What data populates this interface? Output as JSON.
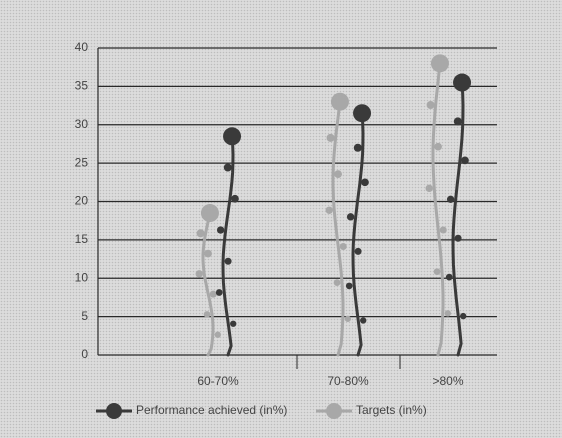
{
  "chart_data": {
    "type": "vine-bar",
    "categories": [
      "60-70%",
      "70-80%",
      ">80%"
    ],
    "series": [
      {
        "name": "Performance achieved (in%)",
        "color": "#3a3a3a",
        "values": [
          28.5,
          31.5,
          35.5
        ]
      },
      {
        "name": "Targets (in%)",
        "color": "#a8a8a8",
        "values": [
          18.5,
          33,
          38
        ]
      }
    ],
    "ylim": [
      0,
      40
    ],
    "yticks": [
      0,
      5,
      10,
      15,
      20,
      25,
      30,
      35,
      40
    ],
    "grid": true
  }
}
